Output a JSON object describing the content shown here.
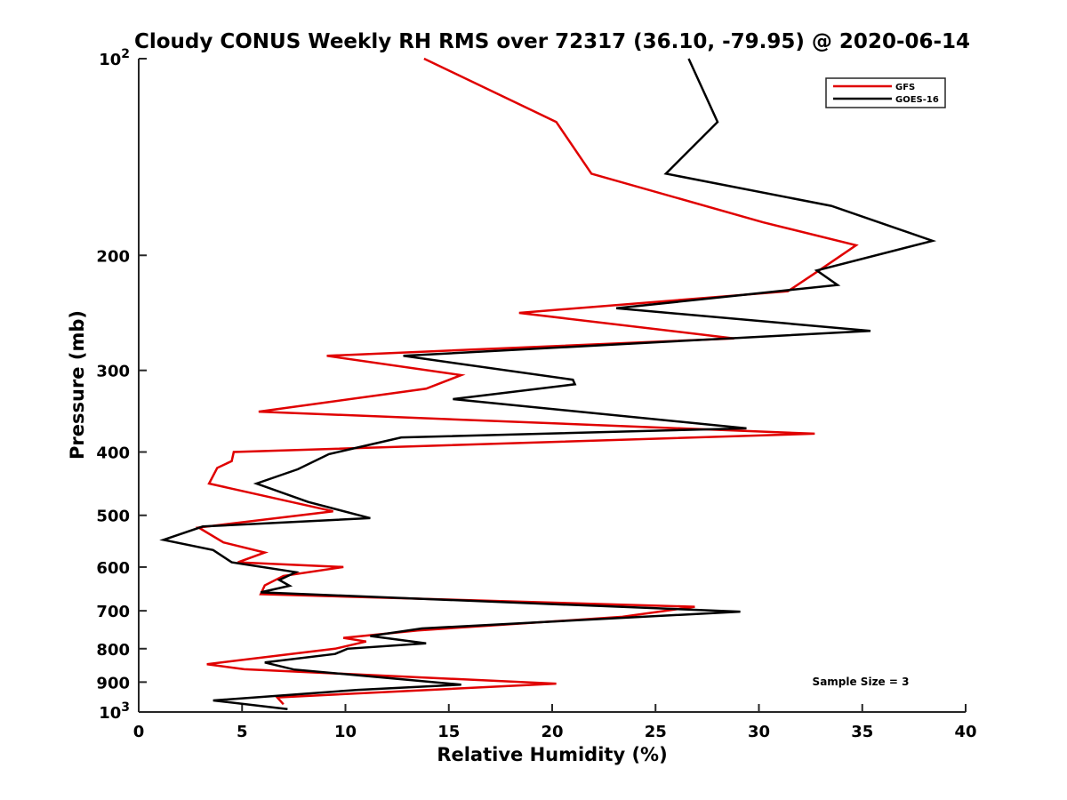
{
  "chart_data": {
    "type": "line",
    "title": "Cloudy CONUS Weekly RH RMS over 72317 (36.10, -79.95) @ 2020-06-14",
    "xlabel": "Relative Humidity (%)",
    "ylabel": "Pressure (mb)",
    "xlim": [
      0,
      40
    ],
    "ylim": [
      100,
      1000
    ],
    "y_scale": "log",
    "y_reversed": true,
    "grid": false,
    "legend_position": "top-right",
    "annotation": "Sample Size = 3",
    "x_ticks": [
      "0",
      "5",
      "10",
      "15",
      "20",
      "25",
      "30",
      "35",
      "40"
    ],
    "y_ticks": [
      {
        "p": 100,
        "base": "10",
        "exp": "2"
      },
      {
        "p": 200,
        "label": "200"
      },
      {
        "p": 300,
        "label": "300"
      },
      {
        "p": 400,
        "label": "400"
      },
      {
        "p": 500,
        "label": "500"
      },
      {
        "p": 600,
        "label": "600"
      },
      {
        "p": 700,
        "label": "700"
      },
      {
        "p": 800,
        "label": "800"
      },
      {
        "p": 900,
        "label": "900"
      },
      {
        "p": 1000,
        "base": "10",
        "exp": "3"
      }
    ],
    "series": [
      {
        "name": "GFS",
        "color": "#e00000",
        "x": [
          13.8,
          20.2,
          21.9,
          30.2,
          34.7,
          33.0,
          31.4,
          18.4,
          28.8,
          9.1,
          15.6,
          13.9,
          5.8,
          32.7,
          4.6,
          4.5,
          3.8,
          3.4,
          9.4,
          2.9,
          4.1,
          6.1,
          4.8,
          9.9,
          7.0,
          6.1,
          5.9,
          26.9,
          23.4,
          13.5,
          9.9,
          11.0,
          9.5,
          3.3,
          5.1,
          20.2,
          6.7,
          7.0
        ],
        "y": [
          100,
          125,
          150,
          178,
          193,
          210,
          227,
          245,
          268,
          285,
          305,
          320,
          347,
          375,
          400,
          413,
          423,
          447,
          493,
          522,
          550,
          570,
          590,
          600,
          619,
          640,
          660,
          690,
          715,
          750,
          770,
          780,
          800,
          845,
          860,
          905,
          950,
          973
        ]
      },
      {
        "name": "GOES-16",
        "color": "#000000",
        "x": [
          26.6,
          28.0,
          25.5,
          33.5,
          38.4,
          32.8,
          33.8,
          23.1,
          35.4,
          12.8,
          21.0,
          21.1,
          15.2,
          29.4,
          12.7,
          9.2,
          7.7,
          5.7,
          8.2,
          11.2,
          3.1,
          1.2,
          3.6,
          4.5,
          7.6,
          6.8,
          7.3,
          5.9,
          29.1,
          13.7,
          11.2,
          13.9,
          10.1,
          9.5,
          6.1,
          7.5,
          15.6,
          10.6,
          3.6,
          7.2
        ],
        "y": [
          100,
          125,
          150,
          168,
          190,
          211,
          222,
          241,
          261,
          285,
          310,
          315,
          332,
          368,
          380,
          403,
          425,
          447,
          477,
          505,
          520,
          545,
          565,
          590,
          611,
          628,
          641,
          656,
          702,
          745,
          765,
          785,
          800,
          815,
          840,
          861,
          908,
          925,
          960,
          990
        ]
      }
    ]
  }
}
